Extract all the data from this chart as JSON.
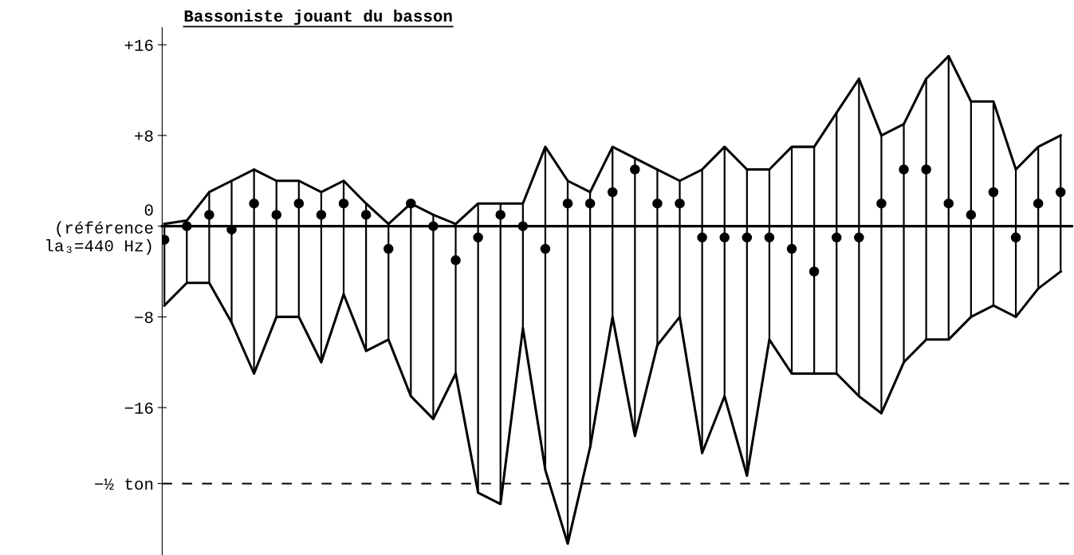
{
  "chart_data": {
    "type": "line",
    "title": "Bassoniste jouant du basson",
    "categories": [
      null,
      null,
      null,
      null,
      null,
      null,
      null,
      null,
      null,
      null,
      null,
      null,
      null,
      null,
      null,
      null,
      null,
      null,
      null,
      null,
      null,
      null,
      null,
      null,
      null,
      null,
      null,
      null,
      null,
      null,
      null,
      null,
      null,
      null,
      null,
      null,
      null,
      null,
      null,
      null,
      null
    ],
    "series": [
      {
        "color": "#000000",
        "marker": "none",
        "values": [
          0.2,
          0.5,
          3,
          4,
          5,
          4,
          4,
          3,
          4,
          2,
          0.2,
          2,
          1,
          0.2,
          2,
          2,
          2,
          7,
          4,
          3,
          7,
          6,
          5,
          4,
          5,
          7,
          5,
          5,
          7,
          7,
          10,
          13,
          8,
          9,
          13,
          15,
          11,
          11,
          5,
          7,
          8
        ]
      },
      {
        "color": "#000000",
        "marker": "none",
        "values": [
          -7,
          -5,
          -5,
          -8.5,
          -13,
          -8,
          -8,
          -12,
          -6,
          -11,
          -10,
          -15,
          -17,
          -13,
          -23.5,
          -24.5,
          -9,
          -21.5,
          -28,
          -19.5,
          -8,
          -18.5,
          -10.5,
          -8,
          -20,
          -15,
          -22,
          -10,
          -13,
          -13,
          -13,
          -15,
          -16.5,
          -12,
          -10,
          -10,
          -8,
          -7,
          -8,
          -5.5,
          -4
        ]
      },
      {
        "type": "scatter",
        "color": "#000000",
        "values": [
          -1.2,
          0,
          1,
          -0.3,
          2,
          1,
          2,
          1,
          2,
          1,
          -2,
          2,
          0,
          -3,
          -1,
          1,
          0,
          -2,
          2,
          2,
          3,
          5,
          2,
          2,
          -1,
          -1,
          -1,
          -1,
          -2,
          -4,
          -1,
          -1,
          2,
          5,
          5,
          2,
          1,
          3,
          -1,
          2,
          3
        ],
        "errors": [
          [
            -7,
            0.2
          ],
          [
            -5,
            0.5
          ],
          [
            -5,
            3
          ],
          [
            -8.5,
            4
          ],
          [
            -13,
            5
          ],
          [
            -8,
            4
          ],
          [
            -8,
            4
          ],
          [
            -12,
            3
          ],
          [
            -6,
            4
          ],
          [
            -11,
            2
          ],
          [
            -10,
            0.2
          ],
          [
            -15,
            2
          ],
          [
            -17,
            1
          ],
          [
            -13,
            0.2
          ],
          [
            -23.5,
            2
          ],
          [
            -24.5,
            2
          ],
          [
            -9,
            2
          ],
          [
            -21.5,
            7
          ],
          [
            -28,
            4
          ],
          [
            -19.5,
            3
          ],
          [
            -8,
            7
          ],
          [
            -18.5,
            6
          ],
          [
            -10.5,
            5
          ],
          [
            -8,
            4
          ],
          [
            -20,
            5
          ],
          [
            -15,
            7
          ],
          [
            -22,
            5
          ],
          [
            -10,
            5
          ],
          [
            -13,
            7
          ],
          [
            -13,
            7
          ],
          [
            -13,
            10
          ],
          [
            -15,
            13
          ],
          [
            -16.5,
            8
          ],
          [
            -12,
            9
          ],
          [
            -10,
            13
          ],
          [
            -10,
            15
          ],
          [
            -8,
            11
          ],
          [
            -7,
            11
          ],
          [
            -8,
            5
          ],
          [
            -5.5,
            7
          ],
          [
            -4,
            8
          ]
        ]
      }
    ],
    "ylim": [
      -29,
      17.5
    ],
    "yticks": [
      {
        "value": 16,
        "label": "+16"
      },
      {
        "value": 8,
        "label": "+8"
      },
      {
        "value": 0,
        "label": "0\n(référence\nla₃=440 Hz)"
      },
      {
        "value": -8,
        "label": "−8"
      },
      {
        "value": -16,
        "label": "−16"
      },
      {
        "value": -22.7,
        "label": "−½ ton"
      }
    ],
    "ref_lines": [
      {
        "axis": "y",
        "value": -22.7,
        "line_style": "dashed",
        "color": "#000000"
      }
    ],
    "marker": "circle",
    "tick_labels": "y",
    "grid": false,
    "legend": false
  }
}
